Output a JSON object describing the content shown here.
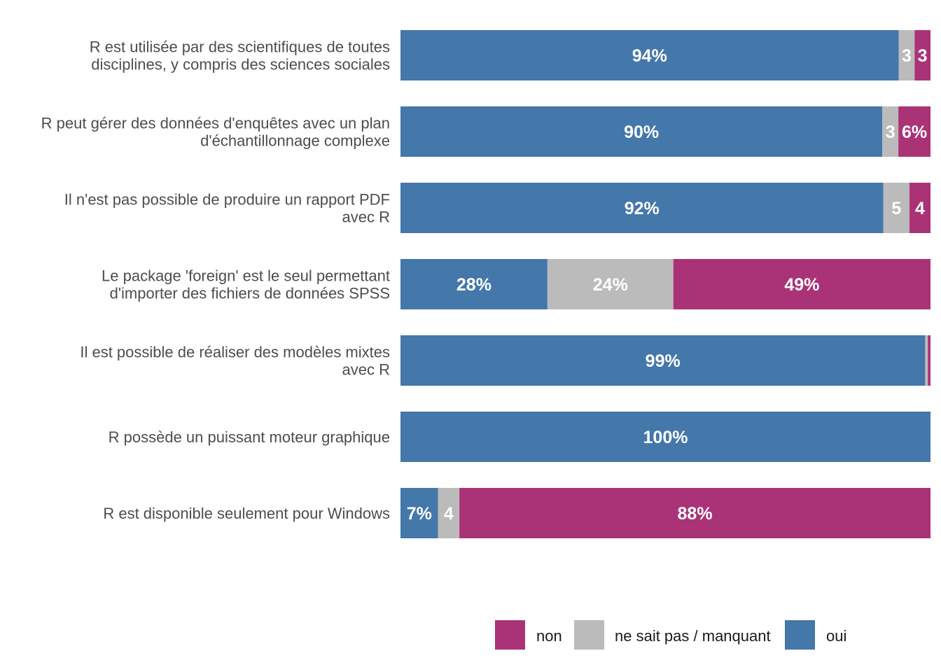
{
  "chart_data": {
    "type": "bar",
    "orientation": "horizontal",
    "stacked": true,
    "normalized": true,
    "grid": false,
    "legend_position": "bottom",
    "categories": [
      [
        "R est utilisée par des scientifiques de toutes",
        "disciplines, y compris des sciences sociales"
      ],
      [
        "R peut gérer des données d'enquêtes avec un plan",
        "d'échantillonnage complexe"
      ],
      [
        "Il n'est pas possible de produire un rapport PDF",
        "avec R"
      ],
      [
        "Le package 'foreign' est le seul permettant",
        "d'importer des fichiers de données SPSS"
      ],
      [
        "Il est possible de réaliser des modèles mixtes",
        "avec R"
      ],
      [
        "R possède un puissant moteur graphique"
      ],
      [
        "R est disponible seulement pour Windows"
      ]
    ],
    "series": [
      {
        "name": "oui",
        "color": "#4477AA",
        "values": [
          94,
          90,
          92,
          28,
          99,
          100,
          7
        ],
        "labels": [
          "94%",
          "90%",
          "92%",
          "28%",
          "99%",
          "100%",
          "7%"
        ]
      },
      {
        "name": "ne sait pas / manquant",
        "color": "#BBBBBB",
        "values": [
          3,
          3,
          5,
          24,
          0.5,
          0,
          4
        ],
        "labels": [
          "3",
          "3",
          "5",
          "24%",
          "",
          "",
          "4"
        ]
      },
      {
        "name": "non",
        "color": "#AA3377",
        "values": [
          3,
          6,
          4,
          49,
          0.5,
          0,
          88
        ],
        "labels": [
          "3",
          "6%",
          "4",
          "49%",
          "",
          "",
          "88%"
        ]
      }
    ],
    "legend": [
      {
        "name": "non",
        "color": "#AA3377"
      },
      {
        "name": "ne sait pas / manquant",
        "color": "#BBBBBB"
      },
      {
        "name": "oui",
        "color": "#4477AA"
      }
    ]
  }
}
